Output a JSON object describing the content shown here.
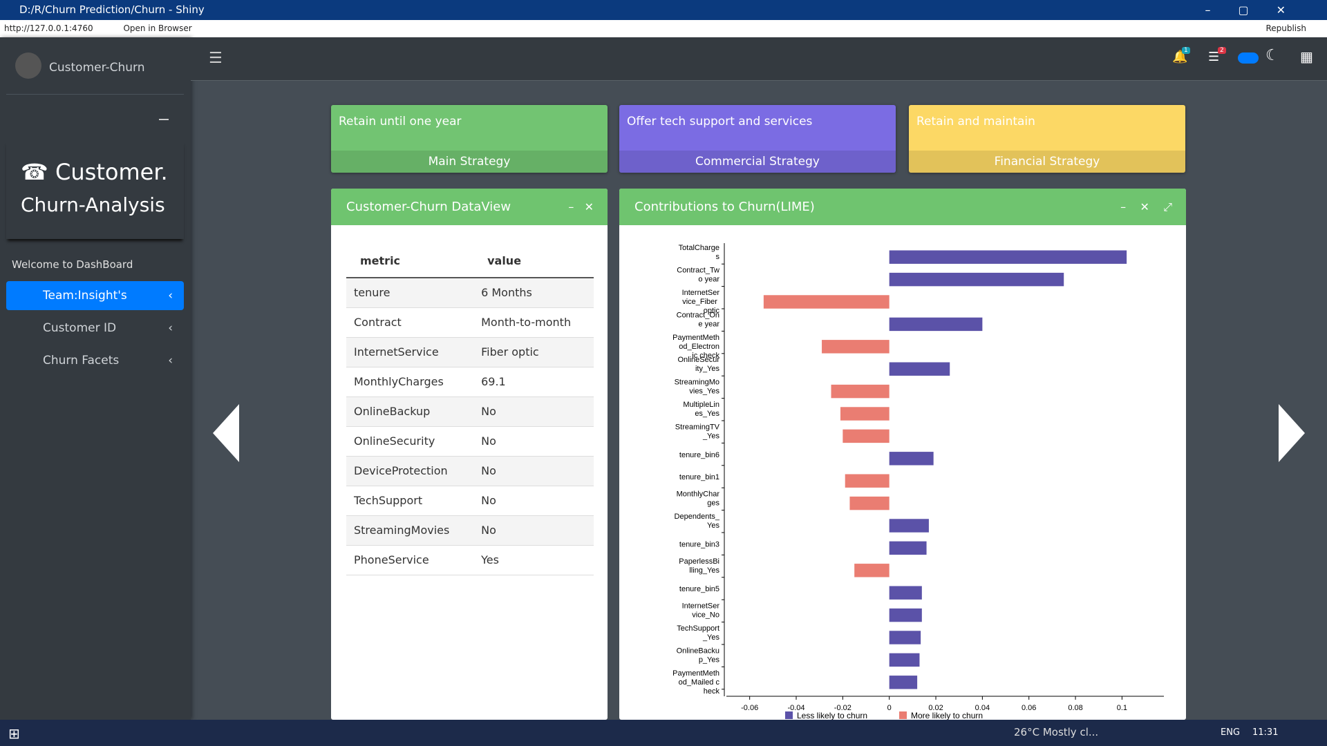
{
  "window": {
    "title": "D:/R/Churn Prediction/Churn - Shiny",
    "url": "http://127.0.0.1:4760",
    "open_browser": "Open in Browser",
    "republish": "Republish"
  },
  "header": {
    "brand": "Customer-Churn",
    "notifications": 1,
    "tasks": 2
  },
  "sidebar": {
    "title_line1": "Customer.",
    "title_line2": "Churn-Analysis",
    "welcome": "Welcome to DashBoard",
    "menu": [
      "Team:Insight's",
      "Customer ID",
      "Churn Facets"
    ]
  },
  "info_boxes": [
    {
      "text": "Retain until one year",
      "subtitle": "Main Strategy",
      "color": "#72c472"
    },
    {
      "text": "Offer tech support and services",
      "subtitle": "Commercial Strategy",
      "color": "#7b6ce3"
    },
    {
      "text": "Retain and maintain",
      "subtitle": "Financial Strategy",
      "color": "#fcd865"
    }
  ],
  "dataview": {
    "title": "Customer-Churn DataView",
    "columns": [
      "metric",
      "value"
    ],
    "rows": [
      [
        "tenure",
        "6 Months"
      ],
      [
        "Contract",
        "Month-to-month"
      ],
      [
        "InternetService",
        "Fiber optic"
      ],
      [
        "MonthlyCharges",
        "69.1"
      ],
      [
        "OnlineBackup",
        "No"
      ],
      [
        "OnlineSecurity",
        "No"
      ],
      [
        "DeviceProtection",
        "No"
      ],
      [
        "TechSupport",
        "No"
      ],
      [
        "StreamingMovies",
        "No"
      ],
      [
        "PhoneService",
        "Yes"
      ]
    ]
  },
  "chart_data": {
    "type": "barh",
    "title": "Contributions to Churn(LIME)",
    "categories": [
      "TotalCharges",
      "Contract_Two year",
      "InternetService_Fiber optic",
      "Contract_One year",
      "PaymentMethod_Electronic check",
      "OnlineSecurity_Yes",
      "StreamingMovies_Yes",
      "MultipleLines_Yes",
      "StreamingTV_Yes",
      "tenure_bin6",
      "tenure_bin1",
      "MonthlyCharges",
      "Dependents_Yes",
      "tenure_bin3",
      "PaperlessBilling_Yes",
      "tenure_bin5",
      "InternetService_No",
      "TechSupport_Yes",
      "OnlineBackup_Yes",
      "PaymentMethod_Mailed check"
    ],
    "values": [
      0.102,
      0.075,
      -0.054,
      0.04,
      -0.029,
      0.026,
      -0.025,
      -0.021,
      -0.02,
      0.019,
      -0.019,
      -0.017,
      0.017,
      0.016,
      -0.015,
      0.014,
      0.014,
      0.0135,
      0.013,
      0.012
    ],
    "series": [
      {
        "name": "Less likely to churn",
        "color": "#5b52a8"
      },
      {
        "name": "More likely to churn",
        "color": "#ea7d72"
      }
    ],
    "xlim": [
      -0.07,
      0.118
    ],
    "xticks": [
      -0.06,
      -0.04,
      -0.02,
      0,
      0.02,
      0.04,
      0.06,
      0.08,
      0.1
    ]
  },
  "taskbar": {
    "weather": "26°C  Mostly cl...",
    "lang": "ENG",
    "time": "11:31"
  }
}
